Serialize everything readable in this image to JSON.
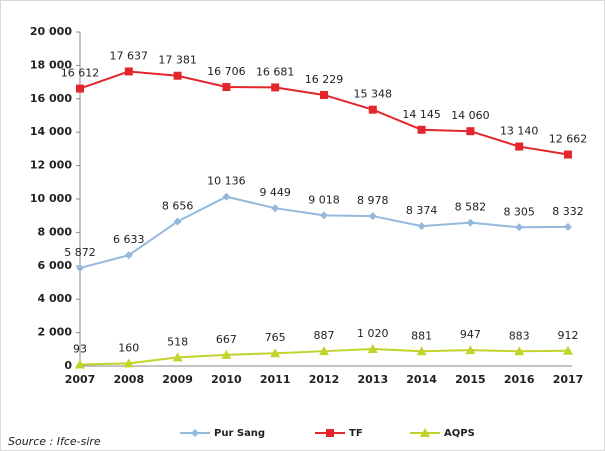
{
  "chart_data": {
    "type": "line",
    "categories": [
      "2007",
      "2008",
      "2009",
      "2010",
      "2011",
      "2012",
      "2013",
      "2014",
      "2015",
      "2016",
      "2017"
    ],
    "series": [
      {
        "name": "Pur Sang",
        "color": "#95b9dc",
        "marker": "diamond",
        "values": [
          5872,
          6633,
          8656,
          10136,
          9449,
          9018,
          8978,
          8374,
          8582,
          8305,
          8332
        ],
        "value_labels": [
          "5 872",
          "6 633",
          "8 656",
          "10 136",
          "9 449",
          "9 018",
          "8 978",
          "8 374",
          "8 582",
          "8 305",
          "8 332"
        ]
      },
      {
        "name": "TF",
        "color": "#e3262b",
        "marker": "square",
        "values": [
          16612,
          17637,
          17381,
          16706,
          16681,
          16229,
          15348,
          14145,
          14060,
          13140,
          12662
        ],
        "value_labels": [
          "16 612",
          "17 637",
          "17 381",
          "16 706",
          "16 681",
          "16 229",
          "15 348",
          "14 145",
          "14 060",
          "13 140",
          "12 662"
        ]
      },
      {
        "name": "AQPS",
        "color": "#c2d32c",
        "marker": "triangle",
        "values": [
          93,
          160,
          518,
          667,
          765,
          887,
          1020,
          881,
          947,
          883,
          912
        ],
        "value_labels": [
          "93",
          "160",
          "518",
          "667",
          "765",
          "887",
          "1 020",
          "881",
          "947",
          "883",
          "912"
        ]
      }
    ],
    "ylim": [
      0,
      20000
    ],
    "yticks": [
      0,
      {
        "value": 2000,
        "label": "2 000"
      },
      {
        "value": 4000,
        "label": "4 000"
      },
      {
        "value": 6000,
        "label": "6 000"
      },
      {
        "value": 8000,
        "label": "8 000"
      },
      {
        "value": 10000,
        "label": "10 000"
      },
      {
        "value": 12000,
        "label": "12 000"
      },
      {
        "value": 14000,
        "label": "14 000"
      },
      {
        "value": 16000,
        "label": "16 000"
      },
      {
        "value": 18000,
        "label": "18 000"
      },
      {
        "value": 20000,
        "label": "20 000"
      }
    ],
    "grid": false,
    "legend": "bottom",
    "source": "Source : Ifce-sire"
  }
}
